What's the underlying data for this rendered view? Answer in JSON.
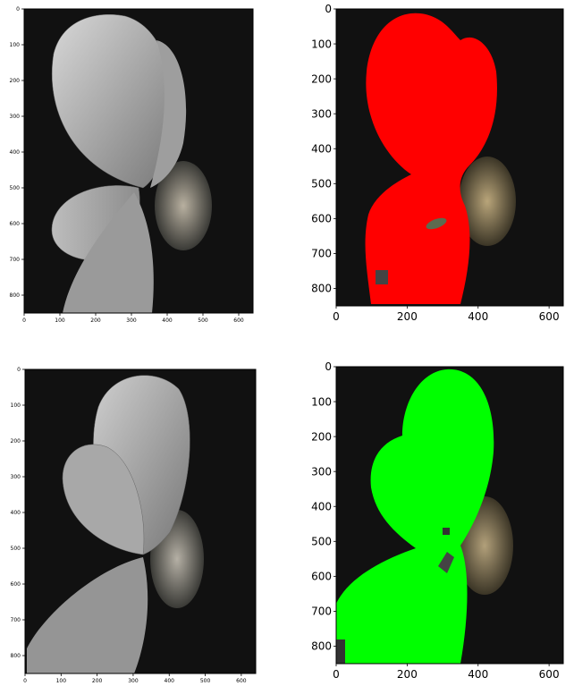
{
  "figure": {
    "panels": [
      {
        "id": "top-left",
        "kind": "grayscale-photo",
        "x_ticks": [
          "0",
          "100",
          "200",
          "300",
          "400",
          "500",
          "600"
        ],
        "y_ticks": [
          "0",
          "100",
          "200",
          "300",
          "400",
          "500",
          "600",
          "700",
          "800"
        ]
      },
      {
        "id": "top-right",
        "kind": "segmentation-overlay",
        "overlay_color": "#ff0000",
        "x_ticks": [
          "0",
          "200",
          "400",
          "600"
        ],
        "y_ticks": [
          "0",
          "100",
          "200",
          "300",
          "400",
          "500",
          "600",
          "700",
          "800"
        ]
      },
      {
        "id": "bottom-left",
        "kind": "grayscale-photo",
        "x_ticks": [
          "0",
          "100",
          "200",
          "300",
          "400",
          "500",
          "600"
        ],
        "y_ticks": [
          "0",
          "100",
          "200",
          "300",
          "400",
          "500",
          "600",
          "700",
          "800"
        ]
      },
      {
        "id": "bottom-right",
        "kind": "segmentation-overlay",
        "overlay_color": "#00ff00",
        "x_ticks": [
          "0",
          "200",
          "400",
          "600"
        ],
        "y_ticks": [
          "0",
          "100",
          "200",
          "300",
          "400",
          "500",
          "600",
          "700",
          "800"
        ]
      }
    ]
  }
}
